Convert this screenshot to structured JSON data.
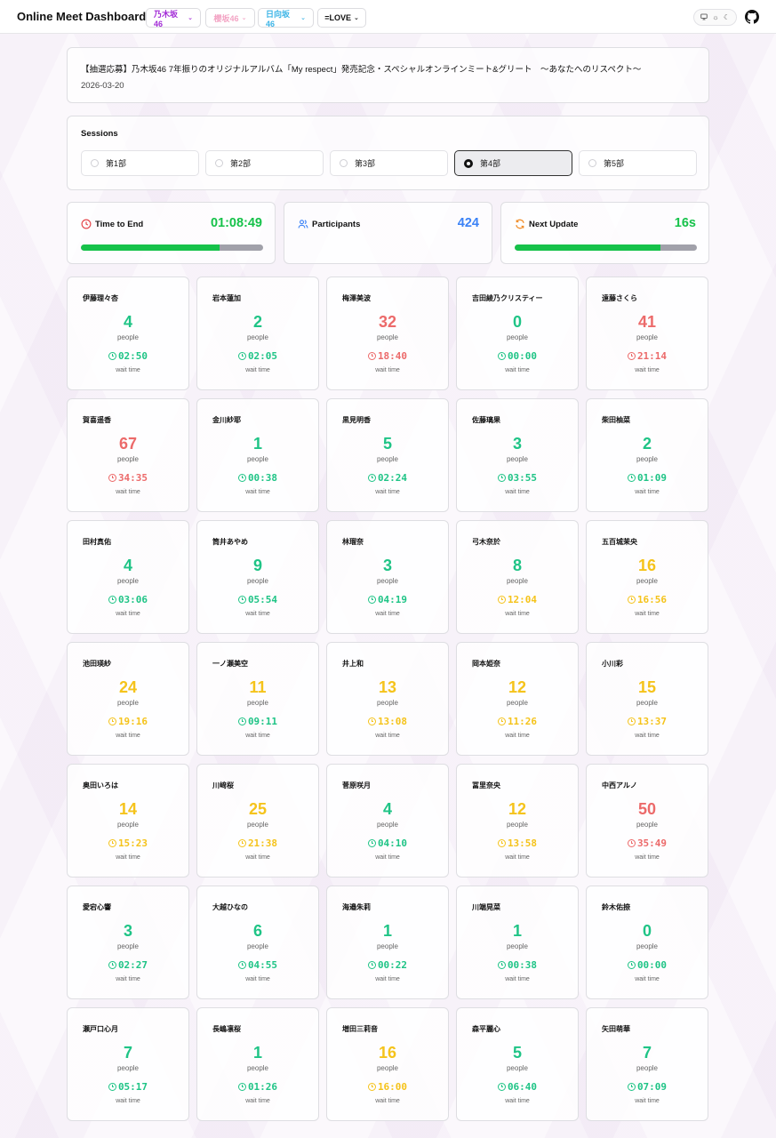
{
  "header": {
    "brand": "Online Meet Dashboard",
    "groups": [
      {
        "label": "乃木坂46",
        "color": "#a22bd6"
      },
      {
        "label": "櫻坂46",
        "color": "#f3a4c4"
      },
      {
        "label": "日向坂46",
        "color": "#3bb4e6"
      },
      {
        "label": "=LOVE",
        "color": "#111111"
      }
    ],
    "theme_icons": [
      "monitor-icon",
      "sun-icon",
      "moon-icon"
    ],
    "github_icon": "github-icon"
  },
  "event": {
    "title": "【抽選応募】乃木坂46 7年振りのオリジナルアルバム「My respect」発売記念・スペシャルオンラインミート&グリート　～あなたへのリスペクト～",
    "date": "2026-03-20"
  },
  "sessions": {
    "label": "Sessions",
    "items": [
      "第1部",
      "第2部",
      "第3部",
      "第4部",
      "第5部"
    ],
    "selected": "第4部"
  },
  "stats": {
    "time_to_end": {
      "label": "Time to End",
      "value": "01:08:49",
      "progress": 0.76,
      "color": "#16c24a"
    },
    "participants": {
      "label": "Participants",
      "value": "424",
      "color": "#3b82f6"
    },
    "next_update": {
      "label": "Next Update",
      "value": "16s",
      "progress": 0.8,
      "color": "#16c24a"
    }
  },
  "members": [
    {
      "name": "伊藤理々杏",
      "count": "4",
      "unit": "people",
      "wait": "02:50",
      "wait_label": "wait time",
      "level": "green"
    },
    {
      "name": "岩本蓮加",
      "count": "2",
      "unit": "people",
      "wait": "02:05",
      "wait_label": "wait time",
      "level": "green"
    },
    {
      "name": "梅澤美波",
      "count": "32",
      "unit": "people",
      "wait": "18:40",
      "wait_label": "wait time",
      "level": "red"
    },
    {
      "name": "吉田綾乃クリスティー",
      "count": "0",
      "unit": "people",
      "wait": "00:00",
      "wait_label": "wait time",
      "level": "green"
    },
    {
      "name": "遠藤さくら",
      "count": "41",
      "unit": "people",
      "wait": "21:14",
      "wait_label": "wait time",
      "level": "red"
    },
    {
      "name": "賀喜遥香",
      "count": "67",
      "unit": "people",
      "wait": "34:35",
      "wait_label": "wait time",
      "level": "red"
    },
    {
      "name": "金川紗耶",
      "count": "1",
      "unit": "people",
      "wait": "00:38",
      "wait_label": "wait time",
      "level": "green"
    },
    {
      "name": "黒見明香",
      "count": "5",
      "unit": "people",
      "wait": "02:24",
      "wait_label": "wait time",
      "level": "green"
    },
    {
      "name": "佐藤璃果",
      "count": "3",
      "unit": "people",
      "wait": "03:55",
      "wait_label": "wait time",
      "level": "green"
    },
    {
      "name": "柴田柚菜",
      "count": "2",
      "unit": "people",
      "wait": "01:09",
      "wait_label": "wait time",
      "level": "green"
    },
    {
      "name": "田村真佑",
      "count": "4",
      "unit": "people",
      "wait": "03:06",
      "wait_label": "wait time",
      "level": "green"
    },
    {
      "name": "筒井あやめ",
      "count": "9",
      "unit": "people",
      "wait": "05:54",
      "wait_label": "wait time",
      "level": "green"
    },
    {
      "name": "林瑠奈",
      "count": "3",
      "unit": "people",
      "wait": "04:19",
      "wait_label": "wait time",
      "level": "green"
    },
    {
      "name": "弓木奈於",
      "count": "8",
      "unit": "people",
      "wait": "12:04",
      "wait_label": "wait time",
      "level": "green_yellow"
    },
    {
      "name": "五百城茉央",
      "count": "16",
      "unit": "people",
      "wait": "16:56",
      "wait_label": "wait time",
      "level": "yellow"
    },
    {
      "name": "池田瑛紗",
      "count": "24",
      "unit": "people",
      "wait": "19:16",
      "wait_label": "wait time",
      "level": "yellow"
    },
    {
      "name": "一ノ瀬美空",
      "count": "11",
      "unit": "people",
      "wait": "09:11",
      "wait_label": "wait time",
      "level": "yellow_green"
    },
    {
      "name": "井上和",
      "count": "13",
      "unit": "people",
      "wait": "13:08",
      "wait_label": "wait time",
      "level": "yellow"
    },
    {
      "name": "岡本姫奈",
      "count": "12",
      "unit": "people",
      "wait": "11:26",
      "wait_label": "wait time",
      "level": "yellow"
    },
    {
      "name": "小川彩",
      "count": "15",
      "unit": "people",
      "wait": "13:37",
      "wait_label": "wait time",
      "level": "yellow"
    },
    {
      "name": "奥田いろは",
      "count": "14",
      "unit": "people",
      "wait": "15:23",
      "wait_label": "wait time",
      "level": "yellow"
    },
    {
      "name": "川﨑桜",
      "count": "25",
      "unit": "people",
      "wait": "21:38",
      "wait_label": "wait time",
      "level": "yellow"
    },
    {
      "name": "菅原咲月",
      "count": "4",
      "unit": "people",
      "wait": "04:10",
      "wait_label": "wait time",
      "level": "green"
    },
    {
      "name": "冨里奈央",
      "count": "12",
      "unit": "people",
      "wait": "13:58",
      "wait_label": "wait time",
      "level": "yellow"
    },
    {
      "name": "中西アルノ",
      "count": "50",
      "unit": "people",
      "wait": "35:49",
      "wait_label": "wait time",
      "level": "red"
    },
    {
      "name": "愛宕心響",
      "count": "3",
      "unit": "people",
      "wait": "02:27",
      "wait_label": "wait time",
      "level": "green"
    },
    {
      "name": "大越ひなの",
      "count": "6",
      "unit": "people",
      "wait": "04:55",
      "wait_label": "wait time",
      "level": "green"
    },
    {
      "name": "海邉朱莉",
      "count": "1",
      "unit": "people",
      "wait": "00:22",
      "wait_label": "wait time",
      "level": "green"
    },
    {
      "name": "川端晃菜",
      "count": "1",
      "unit": "people",
      "wait": "00:38",
      "wait_label": "wait time",
      "level": "green"
    },
    {
      "name": "鈴木佑捺",
      "count": "0",
      "unit": "people",
      "wait": "00:00",
      "wait_label": "wait time",
      "level": "green"
    },
    {
      "name": "瀬戸口心月",
      "count": "7",
      "unit": "people",
      "wait": "05:17",
      "wait_label": "wait time",
      "level": "green"
    },
    {
      "name": "長嶋凛桜",
      "count": "1",
      "unit": "people",
      "wait": "01:26",
      "wait_label": "wait time",
      "level": "green"
    },
    {
      "name": "増田三莉音",
      "count": "16",
      "unit": "people",
      "wait": "16:00",
      "wait_label": "wait time",
      "level": "yellow"
    },
    {
      "name": "森平麗心",
      "count": "5",
      "unit": "people",
      "wait": "06:40",
      "wait_label": "wait time",
      "level": "green"
    },
    {
      "name": "矢田萌華",
      "count": "7",
      "unit": "people",
      "wait": "07:09",
      "wait_label": "wait time",
      "level": "green"
    }
  ]
}
